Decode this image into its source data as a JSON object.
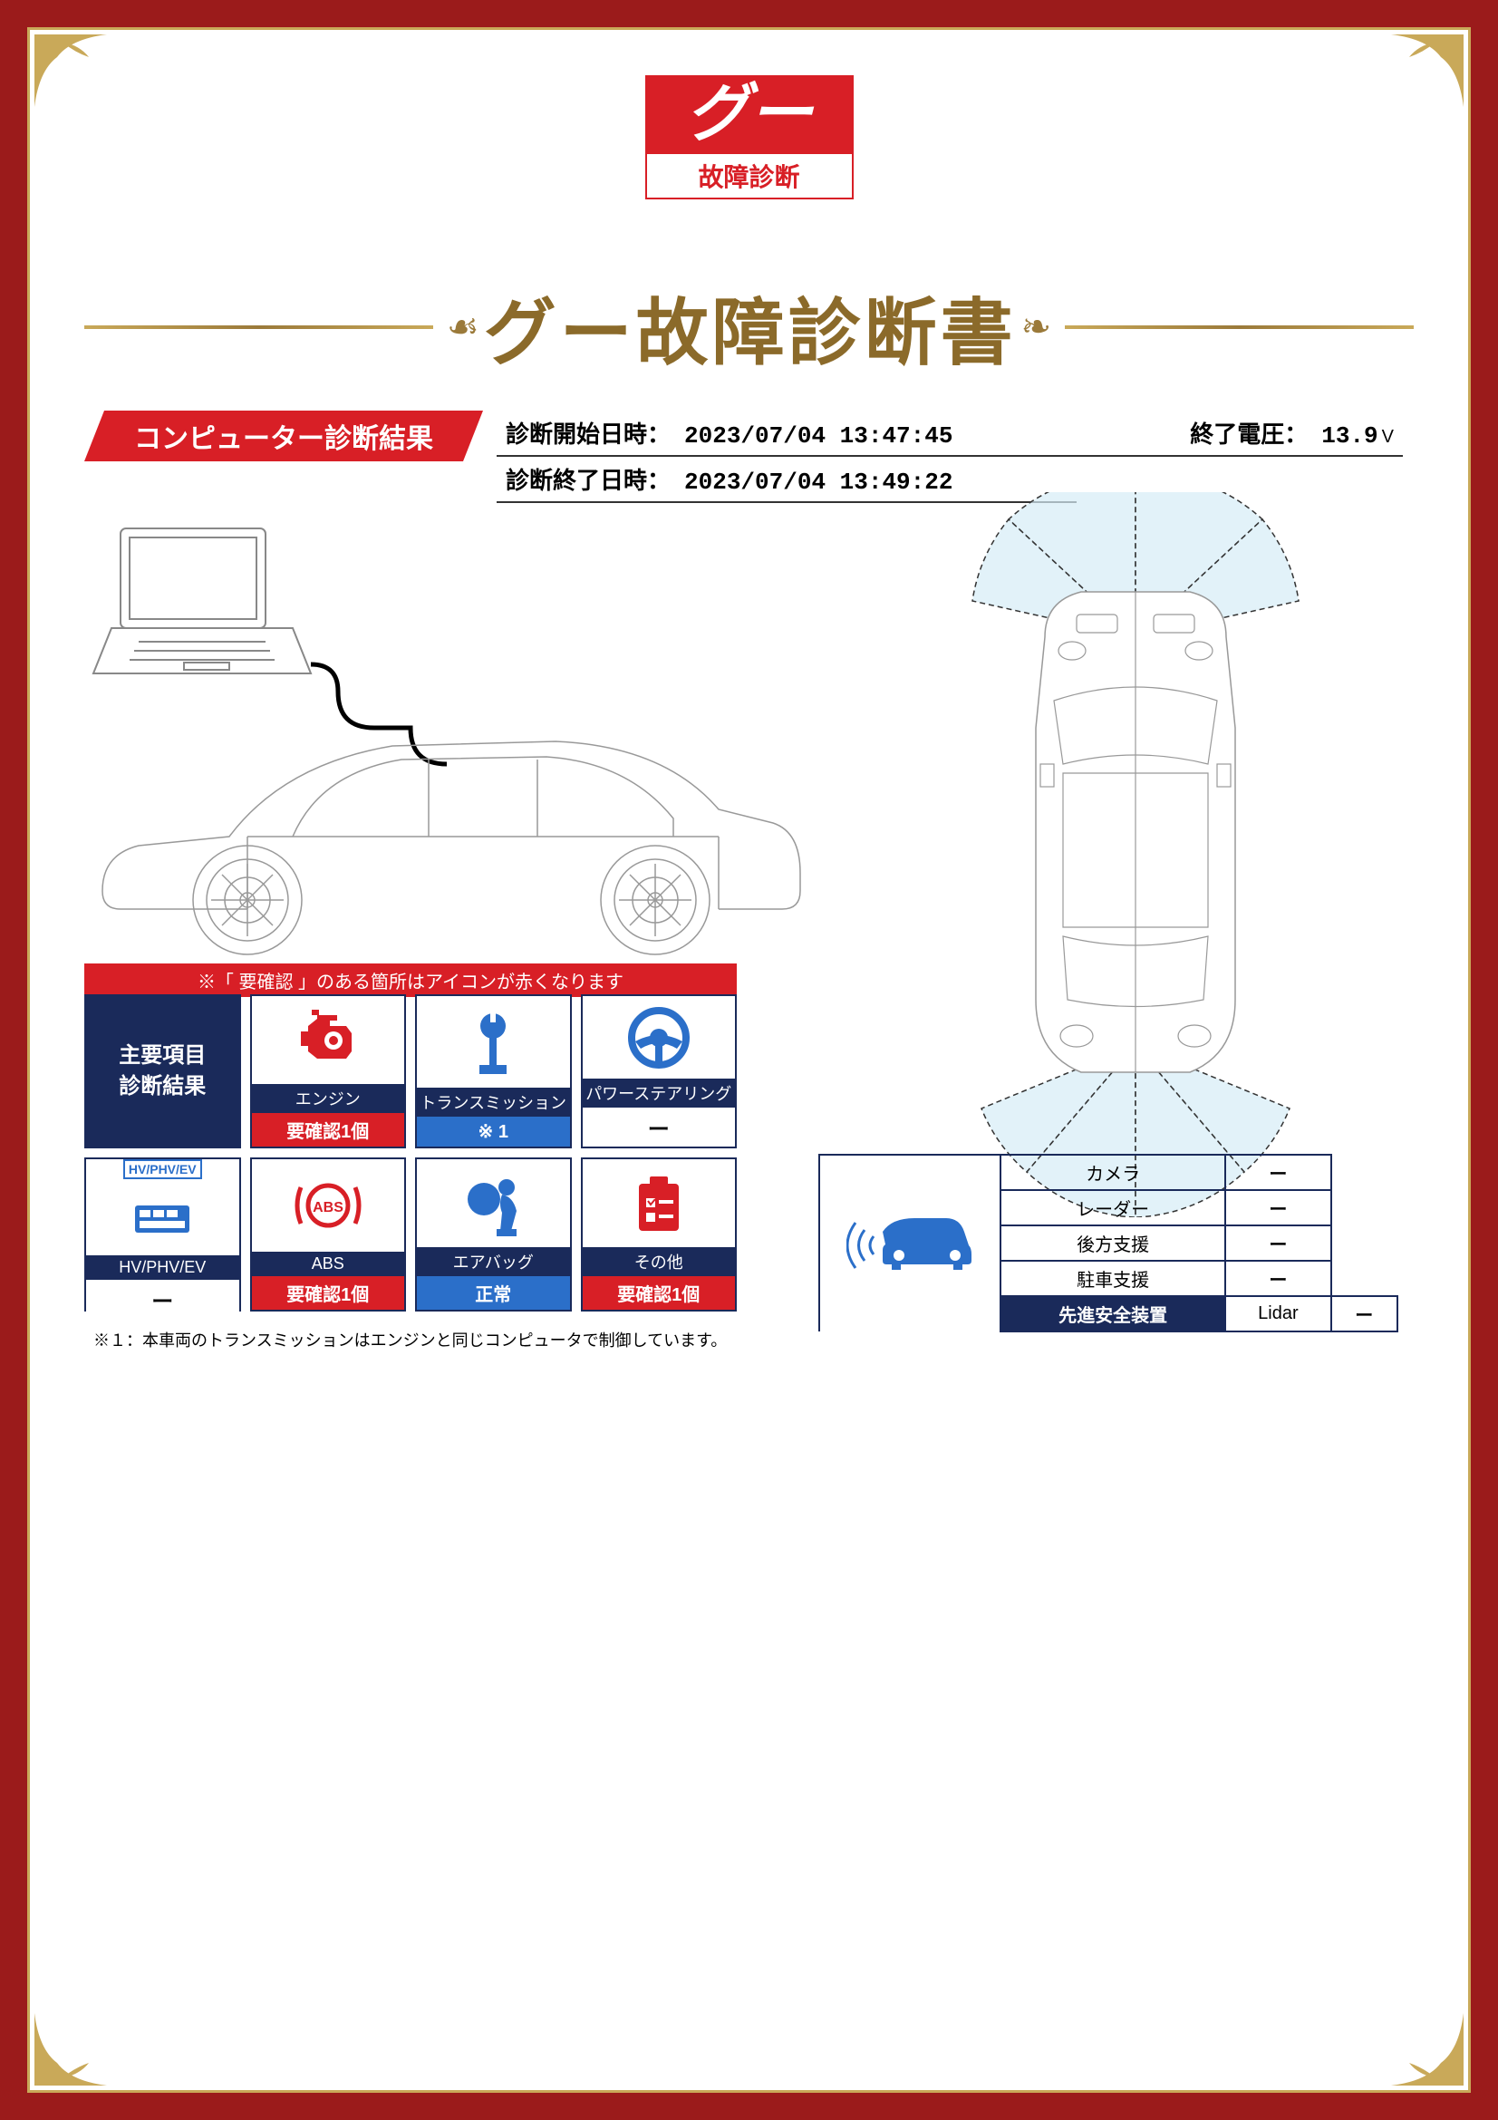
{
  "logo": {
    "brand": "グー",
    "sub": "故障診断"
  },
  "title": "グー故障診断書",
  "section_header": "コンピューター診断結果",
  "meta": {
    "start_label": "診断開始日時：",
    "start_value": "2023/07/04 13:47:45",
    "voltage_label": "終了電圧：",
    "voltage_value": "13.9",
    "voltage_unit": "V",
    "end_label": "診断終了日時：",
    "end_value": "2023/07/04 13:49:22"
  },
  "notice": "※「 要確認 」のある箇所はアイコンが赤くなります",
  "main_card_label": "主要項目\n診断結果",
  "cards": [
    {
      "label": "エンジン",
      "status": "要確認1個",
      "status_color": "red",
      "icon": "engine",
      "icon_color": "#d81f26"
    },
    {
      "label": "トランスミッション",
      "status": "※ 1",
      "status_color": "blue",
      "icon": "transmission",
      "icon_color": "#2b6fc9"
    },
    {
      "label": "パワーステアリング",
      "status": "ー",
      "status_color": "dash",
      "icon": "steering",
      "icon_color": "#2b6fc9"
    },
    {
      "label": "HV/PHV/EV",
      "status": "ー",
      "status_color": "dash",
      "icon": "hvev",
      "icon_color": "#2b6fc9",
      "toptext": "HV/PHV/EV"
    },
    {
      "label": "ABS",
      "status": "要確認1個",
      "status_color": "red",
      "icon": "abs",
      "icon_color": "#d81f26"
    },
    {
      "label": "エアバッグ",
      "status": "正常",
      "status_color": "blue",
      "icon": "airbag",
      "icon_color": "#2b6fc9"
    },
    {
      "label": "その他",
      "status": "要確認1個",
      "status_color": "red",
      "icon": "other",
      "icon_color": "#d81f26"
    }
  ],
  "footnote": "※１：本車両のトランスミッションはエンジンと同じコンピュータで制御しています。",
  "safety": {
    "header": "先進安全装置",
    "rows": [
      {
        "label": "カメラ",
        "value": "ー"
      },
      {
        "label": "レーダー",
        "value": "ー"
      },
      {
        "label": "後方支援",
        "value": "ー"
      },
      {
        "label": "駐車支援",
        "value": "ー"
      },
      {
        "label": "Lidar",
        "value": "ー"
      }
    ]
  },
  "colors": {
    "frame_red": "#9b1b1b",
    "gold": "#c9a959",
    "brand_red": "#d81f26",
    "navy": "#1a2a5a",
    "blue": "#2b6fc9"
  }
}
